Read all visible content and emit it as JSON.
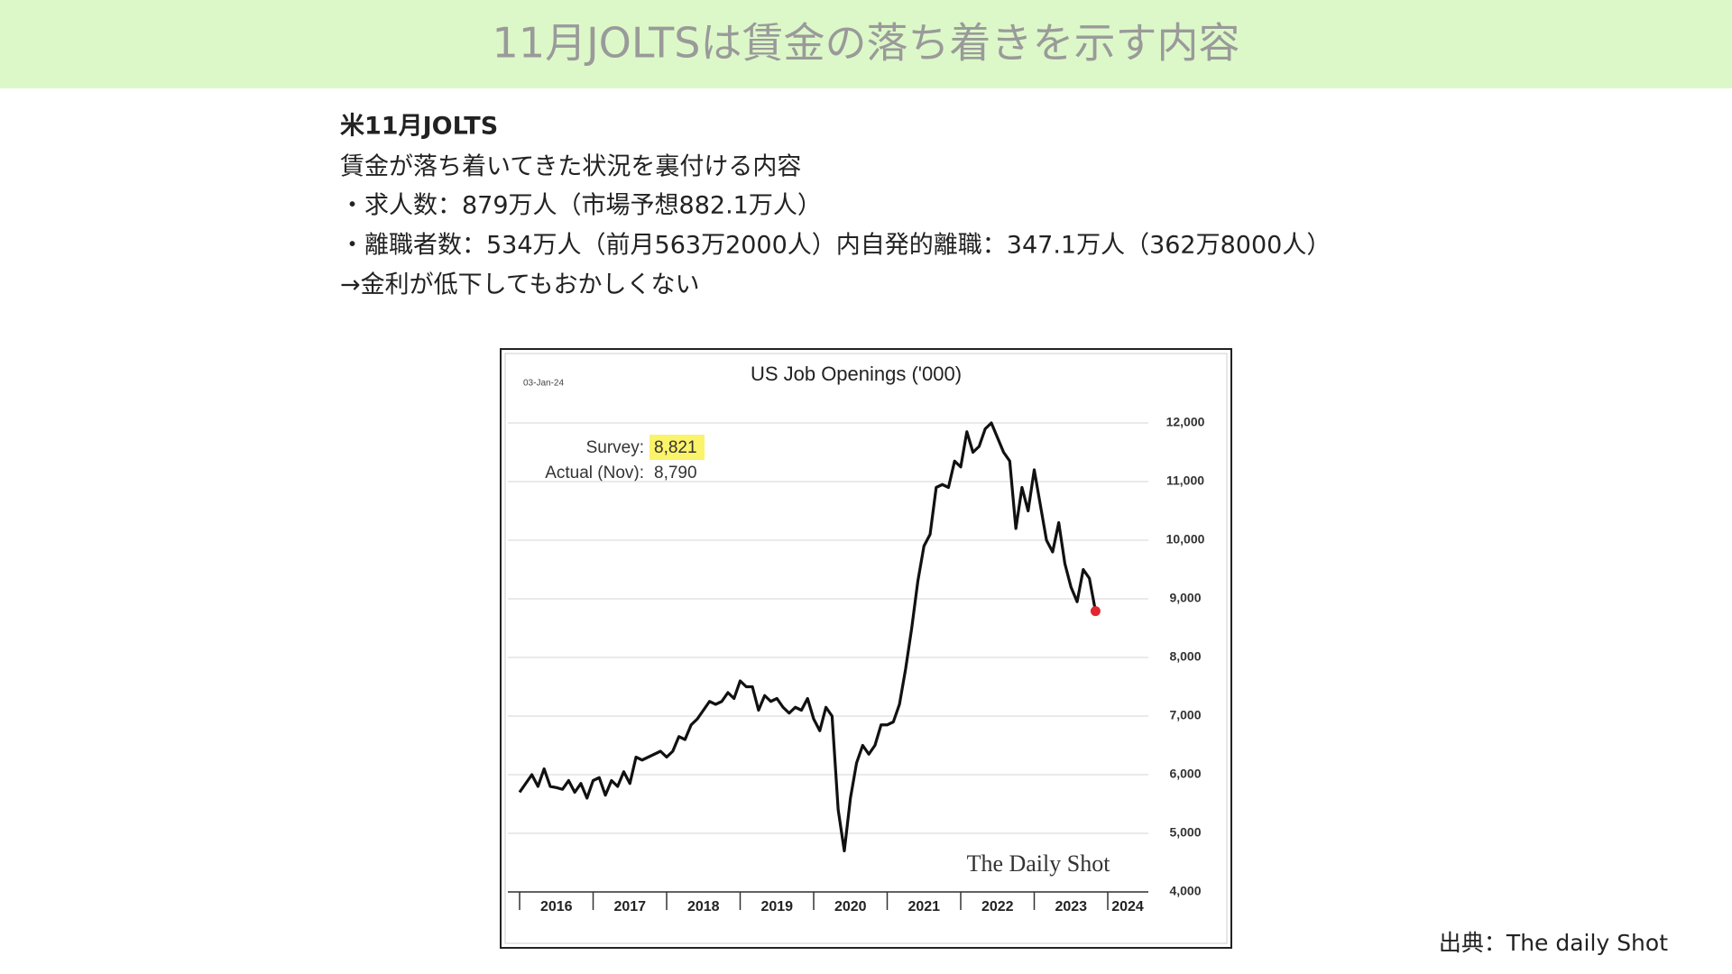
{
  "header": {
    "title": "11月JOLTSは賃金の落ち着きを示す内容"
  },
  "body": {
    "heading": "米11月JOLTS",
    "lines": [
      "賃金が落ち着いてきた状況を裏付ける内容",
      "・求人数：879万人（市場予想882.1万人）",
      "・離職者数：534万人（前月563万2000人）内自発的離職：347.1万人（362万8000人）",
      "→金利が低下してもおかしくない"
    ]
  },
  "chart_data": {
    "type": "line",
    "title": "US Job Openings ('000)",
    "date": "03-Jan-24",
    "annotations": {
      "survey_label": "Survey:",
      "survey_value": "8,821",
      "actual_label": "Actual (Nov):",
      "actual_value": "8,790"
    },
    "brand": "The Daily Shot",
    "categories": [
      null,
      null,
      null,
      null,
      null,
      null,
      "2016",
      null,
      null,
      null,
      null,
      null,
      null,
      null,
      null,
      null,
      null,
      null,
      "2017",
      null,
      null,
      null,
      null,
      null,
      null,
      null,
      null,
      null,
      null,
      null,
      "2018",
      null,
      null,
      null,
      null,
      null,
      null,
      null,
      null,
      null,
      null,
      null,
      "2019",
      null,
      null,
      null,
      null,
      null,
      null,
      null,
      null,
      null,
      null,
      null,
      "2020",
      null,
      null,
      null,
      null,
      null,
      null,
      null,
      null,
      null,
      null,
      null,
      "2021",
      null,
      null,
      null,
      null,
      null,
      null,
      null,
      null,
      null,
      null,
      null,
      "2022",
      null,
      null,
      null,
      null,
      null,
      null,
      null,
      null,
      null,
      null,
      null,
      "2023",
      null,
      null,
      null,
      null,
      null,
      "2024"
    ],
    "values": [
      5700,
      5850,
      6000,
      5800,
      6100,
      5800,
      5780,
      5750,
      5900,
      5700,
      5850,
      5600,
      5900,
      5950,
      5650,
      5900,
      5800,
      6050,
      5850,
      6300,
      6250,
      6300,
      6350,
      6400,
      6300,
      6400,
      6650,
      6600,
      6850,
      6950,
      7100,
      7250,
      7200,
      7250,
      7400,
      7300,
      7600,
      7500,
      7500,
      7100,
      7350,
      7250,
      7300,
      7150,
      7050,
      7150,
      7100,
      7300,
      6950,
      6750,
      7150,
      7000,
      5400,
      4700,
      5600,
      6200,
      6500,
      6350,
      6500,
      6850,
      6850,
      6900,
      7200,
      7800,
      8500,
      9300,
      9900,
      10100,
      10900,
      10950,
      10900,
      11350,
      11250,
      11850,
      11500,
      11600,
      11900,
      12000,
      11750,
      11500,
      11350,
      10200,
      10900,
      10500,
      11200,
      10600,
      10000,
      9800,
      10300,
      9600,
      9200,
      8950,
      9500,
      9350,
      8790,
      null,
      null
    ],
    "color": "#111111",
    "highlight_color": "#e0282e",
    "ylim": [
      4000,
      12000
    ],
    "yticks": [
      {
        "value": 4000,
        "label": "4,000"
      },
      {
        "value": 5000,
        "label": "5,000"
      },
      {
        "value": 6000,
        "label": "6,000"
      },
      {
        "value": 7000,
        "label": "7,000"
      },
      {
        "value": 8000,
        "label": "8,000"
      },
      {
        "value": 9000,
        "label": "9,000"
      },
      {
        "value": 10000,
        "label": "10,000"
      },
      {
        "value": 11000,
        "label": "11,000"
      },
      {
        "value": 12000,
        "label": "12,000"
      }
    ],
    "grid": true
  },
  "source": "出典：The daily Shot"
}
